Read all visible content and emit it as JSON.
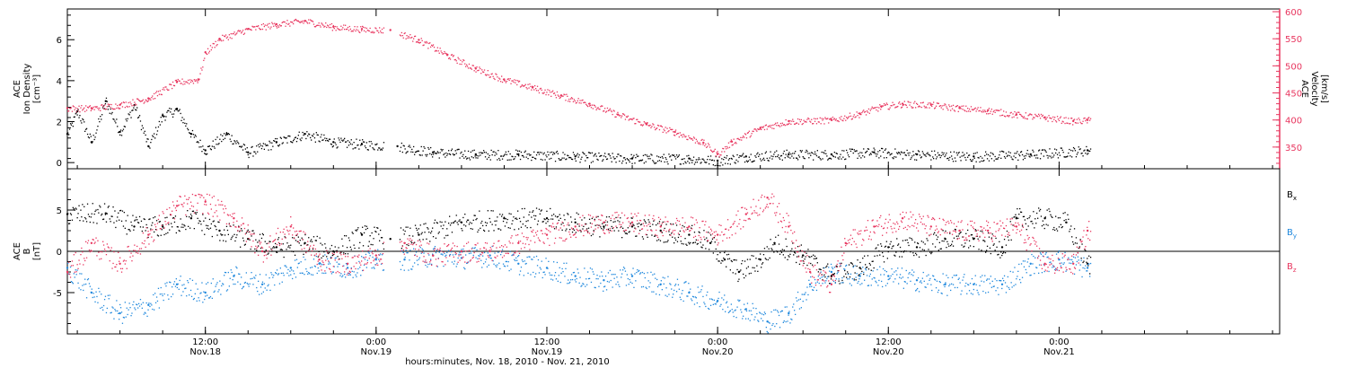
{
  "chart_data": {
    "type": "scatter",
    "xlabel": "hours:minutes, Nov. 18, 2010 - Nov. 21, 2010",
    "x_ticks": [
      {
        "hour": 12,
        "time": "12:00",
        "date": "Nov.18"
      },
      {
        "hour": 24,
        "time": "0:00",
        "date": "Nov.19"
      },
      {
        "hour": 36,
        "time": "12:00",
        "date": "Nov.19"
      },
      {
        "hour": 48,
        "time": "0:00",
        "date": "Nov.20"
      },
      {
        "hour": 60,
        "time": "12:00",
        "date": "Nov.20"
      },
      {
        "hour": 72,
        "time": "0:00",
        "date": "Nov.21"
      }
    ],
    "panels": [
      {
        "id": "plasma",
        "left_axis": {
          "label_lines": [
            "ACE",
            "Ion Density",
            "[cm⁻³]"
          ],
          "ylim": [
            -0.3,
            7.5
          ],
          "ticks": [
            0,
            2,
            4,
            6
          ],
          "tick_labels": [
            "0",
            "2",
            "4",
            "6"
          ]
        },
        "right_axis": {
          "label_lines": [
            "ACE",
            "Velocity",
            "[km/s]"
          ],
          "ylim": [
            310,
            605
          ],
          "ticks": [
            350,
            400,
            450,
            500,
            550,
            600
          ],
          "tick_labels": [
            "350",
            "400",
            "450",
            "500",
            "550",
            "600"
          ],
          "color": "#e8365f"
        },
        "series": [
          {
            "id": "density",
            "axis": "left",
            "color": "#000000",
            "values": [
              [
                2.3,
                1.4
              ],
              [
                3.0,
                2.5
              ],
              [
                4.0,
                1.0
              ],
              [
                5.0,
                3.0
              ],
              [
                6.0,
                1.5
              ],
              [
                7.0,
                2.8
              ],
              [
                8.0,
                0.8
              ],
              [
                9.0,
                2.3
              ],
              [
                10.0,
                2.6
              ],
              [
                11.0,
                1.4
              ],
              [
                12.0,
                0.6
              ],
              [
                13.5,
                1.4
              ],
              [
                15.0,
                0.5
              ],
              [
                17.0,
                1.0
              ],
              [
                19.0,
                1.4
              ],
              [
                21.0,
                1.0
              ],
              [
                23.0,
                0.9
              ],
              [
                25.5,
                0.8
              ],
              [
                28.0,
                0.5
              ],
              [
                31.0,
                0.4
              ],
              [
                34.0,
                0.4
              ],
              [
                38.0,
                0.3
              ],
              [
                42.0,
                0.2
              ],
              [
                46.0,
                0.2
              ],
              [
                48.0,
                0.1
              ],
              [
                50.0,
                0.3
              ],
              [
                53.0,
                0.4
              ],
              [
                56.0,
                0.4
              ],
              [
                59.0,
                0.5
              ],
              [
                62.0,
                0.4
              ],
              [
                66.0,
                0.3
              ],
              [
                70.0,
                0.4
              ],
              [
                74.0,
                0.6
              ]
            ]
          },
          {
            "id": "velocity",
            "axis": "right",
            "color": "#e8365f",
            "values": [
              [
                2.3,
                422
              ],
              [
                4.0,
                422
              ],
              [
                6.0,
                428
              ],
              [
                8.0,
                440
              ],
              [
                10.0,
                470
              ],
              [
                11.5,
                475
              ],
              [
                12.0,
                525
              ],
              [
                13.0,
                550
              ],
              [
                15.0,
                568
              ],
              [
                17.0,
                577
              ],
              [
                19.0,
                583
              ],
              [
                21.0,
                572
              ],
              [
                23.0,
                568
              ],
              [
                25.0,
                566
              ],
              [
                27.0,
                548
              ],
              [
                29.0,
                520
              ],
              [
                31.0,
                495
              ],
              [
                33.0,
                475
              ],
              [
                35.0,
                460
              ],
              [
                37.0,
                445
              ],
              [
                39.0,
                430
              ],
              [
                41.0,
                410
              ],
              [
                43.0,
                392
              ],
              [
                45.0,
                378
              ],
              [
                47.0,
                358
              ],
              [
                48.0,
                337
              ],
              [
                49.0,
                360
              ],
              [
                51.0,
                385
              ],
              [
                53.0,
                398
              ],
              [
                56.0,
                400
              ],
              [
                58.0,
                412
              ],
              [
                59.5,
                425
              ],
              [
                61.0,
                430
              ],
              [
                63.0,
                428
              ],
              [
                65.0,
                422
              ],
              [
                67.0,
                418
              ],
              [
                69.0,
                410
              ],
              [
                71.0,
                405
              ],
              [
                73.0,
                398
              ],
              [
                74.0,
                400
              ]
            ]
          }
        ]
      },
      {
        "id": "field",
        "left_axis": {
          "label_lines": [
            "ACE",
            "B",
            "[nT]"
          ],
          "ylim": [
            -10,
            10
          ],
          "ticks": [
            -5,
            0,
            5
          ],
          "tick_labels": [
            "-5",
            "0",
            "5"
          ]
        },
        "legend": [
          {
            "main": "B",
            "sub": "x",
            "color": "#000000"
          },
          {
            "main": "B",
            "sub": "y",
            "color": "#1f88dd"
          },
          {
            "main": "B",
            "sub": "z",
            "color": "#e8365f"
          }
        ],
        "series": [
          {
            "id": "Bx",
            "color": "#000000",
            "values": [
              [
                2.3,
                4.5
              ],
              [
                5.0,
                4.6
              ],
              [
                7.0,
                3.0
              ],
              [
                9.0,
                3.0
              ],
              [
                11.0,
                4.0
              ],
              [
                13.0,
                2.5
              ],
              [
                15.0,
                1.5
              ],
              [
                17.0,
                0.5
              ],
              [
                19.0,
                1.0
              ],
              [
                21.0,
                0.0
              ],
              [
                23.0,
                2.0
              ],
              [
                25.0,
                1.5
              ],
              [
                27.0,
                2.0
              ],
              [
                30.0,
                3.5
              ],
              [
                33.0,
                4.0
              ],
              [
                36.0,
                4.0
              ],
              [
                38.0,
                3.5
              ],
              [
                40.0,
                3.0
              ],
              [
                42.0,
                3.0
              ],
              [
                44.0,
                2.5
              ],
              [
                46.0,
                2.0
              ],
              [
                47.5,
                1.0
              ],
              [
                48.5,
                -1.0
              ],
              [
                49.5,
                -2.5
              ],
              [
                51.0,
                -1.0
              ],
              [
                52.0,
                1.0
              ],
              [
                54.0,
                -0.5
              ],
              [
                56.0,
                -3.0
              ],
              [
                58.0,
                -2.0
              ],
              [
                60.0,
                0.5
              ],
              [
                62.0,
                0.5
              ],
              [
                64.0,
                1.5
              ],
              [
                66.0,
                1.5
              ],
              [
                68.0,
                0.5
              ],
              [
                69.0,
                4.0
              ],
              [
                71.0,
                4.0
              ],
              [
                72.5,
                3.5
              ],
              [
                74.0,
                -1.5
              ]
            ]
          },
          {
            "id": "By",
            "color": "#1f88dd",
            "values": [
              [
                2.3,
                -2.0
              ],
              [
                4.0,
                -5.0
              ],
              [
                6.0,
                -7.5
              ],
              [
                8.0,
                -6.5
              ],
              [
                10.0,
                -4.0
              ],
              [
                12.0,
                -5.0
              ],
              [
                14.0,
                -3.0
              ],
              [
                16.0,
                -4.0
              ],
              [
                18.0,
                -2.0
              ],
              [
                20.0,
                -1.5
              ],
              [
                22.0,
                -2.0
              ],
              [
                24.0,
                -1.0
              ],
              [
                26.0,
                -1.0
              ],
              [
                28.0,
                -0.5
              ],
              [
                30.0,
                -0.8
              ],
              [
                32.0,
                -0.5
              ],
              [
                34.0,
                -1.5
              ],
              [
                36.0,
                -2.0
              ],
              [
                38.0,
                -3.0
              ],
              [
                40.0,
                -3.5
              ],
              [
                42.0,
                -3.0
              ],
              [
                44.0,
                -4.0
              ],
              [
                46.0,
                -5.0
              ],
              [
                48.0,
                -6.0
              ],
              [
                50.0,
                -7.0
              ],
              [
                51.5,
                -8.5
              ],
              [
                53.0,
                -7.5
              ],
              [
                54.5,
                -4.0
              ],
              [
                56.0,
                -2.5
              ],
              [
                58.0,
                -3.0
              ],
              [
                60.0,
                -3.0
              ],
              [
                62.0,
                -3.5
              ],
              [
                64.0,
                -4.0
              ],
              [
                66.0,
                -4.0
              ],
              [
                68.0,
                -4.0
              ],
              [
                70.0,
                -1.5
              ],
              [
                72.0,
                -1.0
              ],
              [
                74.0,
                -2.0
              ]
            ]
          },
          {
            "id": "Bz",
            "color": "#e8365f",
            "values": [
              [
                2.3,
                -2.5
              ],
              [
                4.0,
                1.0
              ],
              [
                6.0,
                -1.5
              ],
              [
                8.0,
                2.0
              ],
              [
                10.0,
                5.5
              ],
              [
                12.0,
                6.0
              ],
              [
                14.0,
                4.0
              ],
              [
                16.0,
                0.0
              ],
              [
                18.0,
                3.0
              ],
              [
                20.0,
                -1.0
              ],
              [
                22.0,
                -1.5
              ],
              [
                24.0,
                -0.5
              ],
              [
                26.0,
                1.0
              ],
              [
                28.0,
                -0.5
              ],
              [
                30.0,
                0.0
              ],
              [
                32.0,
                0.0
              ],
              [
                34.0,
                1.0
              ],
              [
                36.0,
                2.0
              ],
              [
                38.0,
                3.0
              ],
              [
                40.0,
                3.5
              ],
              [
                42.0,
                3.5
              ],
              [
                44.0,
                3.0
              ],
              [
                46.0,
                3.0
              ],
              [
                48.0,
                2.0
              ],
              [
                50.0,
                4.5
              ],
              [
                51.5,
                6.5
              ],
              [
                53.0,
                3.0
              ],
              [
                54.5,
                -2.5
              ],
              [
                56.0,
                -4.0
              ],
              [
                57.0,
                1.0
              ],
              [
                59.0,
                3.0
              ],
              [
                61.0,
                4.0
              ],
              [
                63.0,
                3.0
              ],
              [
                65.0,
                2.5
              ],
              [
                67.0,
                2.5
              ],
              [
                69.0,
                3.0
              ],
              [
                71.0,
                -1.5
              ],
              [
                73.0,
                -1.5
              ],
              [
                74.0,
                2.5
              ]
            ]
          }
        ]
      }
    ]
  }
}
